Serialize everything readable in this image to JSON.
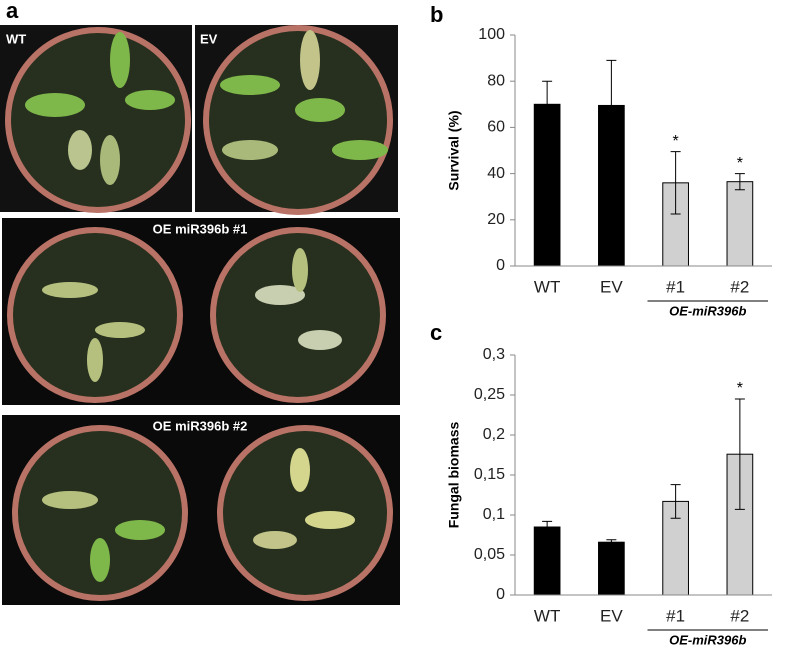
{
  "figure": {
    "panel_labels": [
      "a",
      "b",
      "c"
    ],
    "photo_labels": [
      "WT",
      "EV",
      "OE miR396b #1",
      "OE miR396b #2"
    ]
  },
  "chart_data": [
    {
      "type": "bar",
      "y_label": "Survival (%)",
      "categories": [
        "WT",
        "EV",
        "#1",
        "#2"
      ],
      "values": [
        70,
        69.5,
        36,
        36.5
      ],
      "errors": [
        10,
        19.5,
        13.5,
        3.5
      ],
      "colors": [
        "#000000",
        "#000000",
        "#d0d0d0",
        "#d0d0d0"
      ],
      "significance": [
        null,
        null,
        "*",
        "*"
      ],
      "group_label": "OE-miR396b",
      "ylim": [
        0,
        100
      ],
      "yticks": [
        0,
        20,
        40,
        60,
        80,
        100
      ]
    },
    {
      "type": "bar",
      "y_label": "Fungal biomass",
      "categories": [
        "WT",
        "EV",
        "#1",
        "#2"
      ],
      "values": [
        0.085,
        0.066,
        0.117,
        0.176
      ],
      "errors": [
        0.007,
        0.003,
        0.021,
        0.069
      ],
      "colors": [
        "#000000",
        "#000000",
        "#d0d0d0",
        "#d0d0d0"
      ],
      "significance": [
        null,
        null,
        null,
        "*"
      ],
      "group_label": "OE-miR396b",
      "ylim": [
        0,
        0.3
      ],
      "yticks": [
        0,
        {
          "value": 0.05,
          "label": "0,05"
        },
        {
          "value": 0.1,
          "label": "0,1"
        },
        {
          "value": 0.15,
          "label": "0,15"
        },
        {
          "value": 0.2,
          "label": "0,2"
        },
        {
          "value": 0.25,
          "label": "0,25"
        },
        {
          "value": 0.3,
          "label": "0,3"
        }
      ]
    }
  ]
}
